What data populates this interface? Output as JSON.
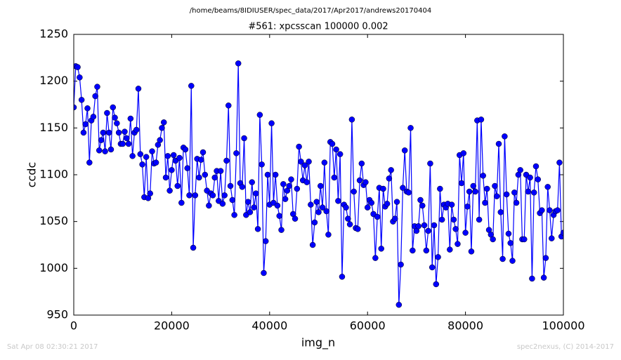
{
  "header": "/home/beams/8IDIUSER/spec_data/2017/Apr2017/andrews20170404",
  "footer_left": "Sat Apr 08 02:30:21 2017",
  "footer_right": "spec2nexus, (C) 2014-2017",
  "chart_data": {
    "type": "line",
    "title": "#561: xpcsscan 100000 0.002",
    "xlabel": "img_n",
    "ylabel": "ccdc",
    "color": "#0000ff",
    "markers": true,
    "xlim": [
      0,
      100000
    ],
    "ylim": [
      950,
      1250
    ],
    "xticks": [
      0,
      20000,
      40000,
      60000,
      80000,
      100000
    ],
    "yticks": [
      950,
      1000,
      1050,
      1100,
      1150,
      1200,
      1250
    ],
    "x": [
      0,
      400,
      800,
      1200,
      1600,
      2000,
      2400,
      2800,
      3200,
      3600,
      4000,
      4400,
      4800,
      5200,
      5600,
      6000,
      6400,
      6800,
      7200,
      7600,
      8000,
      8400,
      8800,
      9200,
      9600,
      10000,
      10400,
      10800,
      11200,
      11600,
      12000,
      12400,
      12800,
      13200,
      13600,
      14000,
      14400,
      14800,
      15200,
      15600,
      16000,
      16400,
      16800,
      17200,
      17600,
      18000,
      18400,
      18800,
      19200,
      19600,
      20000,
      20400,
      20800,
      21200,
      21600,
      22000,
      22400,
      22800,
      23200,
      23600,
      24000,
      24400,
      24800,
      25200,
      25600,
      26000,
      26400,
      26800,
      27200,
      27600,
      28000,
      28400,
      28800,
      29200,
      29600,
      30000,
      30400,
      30800,
      31200,
      31600,
      32000,
      32400,
      32800,
      33200,
      33600,
      34000,
      34400,
      34800,
      35200,
      35600,
      36000,
      36400,
      36800,
      37200,
      37600,
      38000,
      38400,
      38800,
      39200,
      39600,
      40000,
      40400,
      40800,
      41200,
      41600,
      42000,
      42400,
      42800,
      43200,
      43600,
      44000,
      44400,
      44800,
      45200,
      45600,
      46000,
      46400,
      46800,
      47200,
      47600,
      48000,
      48400,
      48800,
      49200,
      49600,
      50000,
      50400,
      50800,
      51200,
      51600,
      52000,
      52400,
      52800,
      53200,
      53600,
      54000,
      54400,
      54800,
      55200,
      55600,
      56000,
      56400,
      56800,
      57200,
      57600,
      58000,
      58400,
      58800,
      59200,
      59600,
      60000,
      60400,
      60800,
      61200,
      61600,
      62000,
      62400,
      62800,
      63200,
      63600,
      64000,
      64400,
      64800,
      65200,
      65600,
      66000,
      66400,
      66800,
      67200,
      67600,
      68000,
      68400,
      68800,
      69200,
      69600,
      70000,
      70400,
      70800,
      71200,
      71600,
      72000,
      72400,
      72800,
      73200,
      73600,
      74000,
      74400,
      74800,
      75200,
      75600,
      76000,
      76400,
      76800,
      77200,
      77600,
      78000,
      78400,
      78800,
      79200,
      79600,
      80000,
      80400,
      80800,
      81200,
      81600,
      82000,
      82400,
      82800,
      83200,
      83600,
      84000,
      84400,
      84800,
      85200,
      85600,
      86000,
      86400,
      86800,
      87200,
      87600,
      88000,
      88400,
      88800,
      89200,
      89600,
      90000,
      90400,
      90800,
      91200,
      91600,
      92000,
      92400,
      92800,
      93200,
      93600,
      94000,
      94400,
      94800,
      95200,
      95600,
      96000,
      96400,
      96800,
      97200,
      97600,
      98000,
      98400,
      98800,
      99200,
      99600,
      100000
    ],
    "values": [
      1172,
      1216,
      1215,
      1204,
      1180,
      1145,
      1154,
      1171,
      1113,
      1158,
      1162,
      1184,
      1194,
      1126,
      1137,
      1145,
      1125,
      1166,
      1145,
      1127,
      1172,
      1161,
      1155,
      1145,
      1133,
      1133,
      1146,
      1139,
      1133,
      1160,
      1120,
      1145,
      1148,
      1192,
      1122,
      1111,
      1076,
      1119,
      1075,
      1080,
      1125,
      1112,
      1113,
      1132,
      1137,
      1150,
      1156,
      1097,
      1120,
      1083,
      1105,
      1121,
      1115,
      1088,
      1118,
      1070,
      1129,
      1127,
      1107,
      1078,
      1195,
      1022,
      1078,
      1117,
      1097,
      1116,
      1124,
      1100,
      1083,
      1067,
      1080,
      1078,
      1097,
      1104,
      1072,
      1104,
      1069,
      1078,
      1115,
      1174,
      1088,
      1073,
      1057,
      1123,
      1219,
      1091,
      1087,
      1139,
      1057,
      1071,
      1060,
      1092,
      1065,
      1080,
      1042,
      1164,
      1111,
      995,
      1029,
      1100,
      1068,
      1155,
      1070,
      1100,
      1067,
      1056,
      1041,
      1090,
      1074,
      1083,
      1088,
      1095,
      1058,
      1053,
      1085,
      1130,
      1114,
      1094,
      1110,
      1092,
      1114,
      1068,
      1025,
      1049,
      1071,
      1060,
      1088,
      1065,
      1113,
      1061,
      1036,
      1135,
      1133,
      1097,
      1127,
      1072,
      1122,
      991,
      1068,
      1065,
      1053,
      1047,
      1159,
      1082,
      1043,
      1042,
      1094,
      1112,
      1089,
      1092,
      1065,
      1073,
      1070,
      1058,
      1011,
      1055,
      1086,
      1021,
      1085,
      1066,
      1069,
      1096,
      1105,
      1050,
      1053,
      1071,
      961,
      1004,
      1086,
      1126,
      1082,
      1081,
      1150,
      1019,
      1045,
      1040,
      1045,
      1073,
      1067,
      1046,
      1019,
      1040,
      1112,
      1001,
      1046,
      983,
      1012,
      1085,
      1052,
      1068,
      1065,
      1069,
      1020,
      1068,
      1052,
      1042,
      1026,
      1121,
      1091,
      1123,
      1038,
      1066,
      1082,
      1018,
      1088,
      1082,
      1158,
      1052,
      1159,
      1099,
      1070,
      1085,
      1041,
      1036,
      1031,
      1088,
      1077,
      1133,
      1060,
      1010,
      1141,
      1079,
      1037,
      1027,
      1008,
      1081,
      1070,
      1100,
      1105,
      1031,
      1031,
      1100,
      1082,
      1097,
      989,
      1081,
      1109,
      1095,
      1059,
      1062,
      990,
      1011,
      1087,
      1062,
      1032,
      1057,
      1061,
      1062,
      1113,
      1034,
      1038
    ]
  }
}
